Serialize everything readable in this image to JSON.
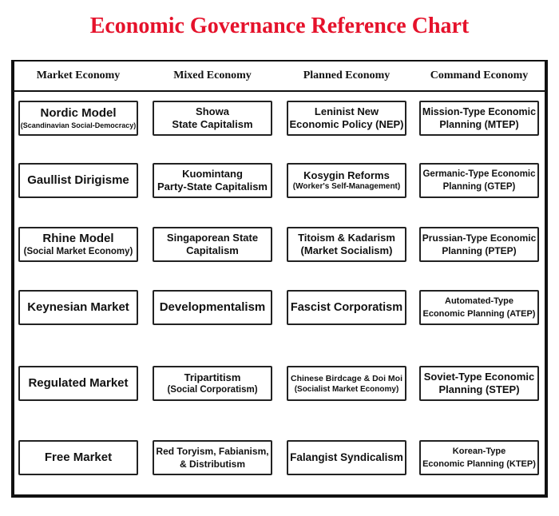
{
  "title": "Economic Governance Reference Chart",
  "columns": [
    {
      "header": "Market Economy",
      "items": [
        {
          "main": "Nordic Model",
          "sub": "(Scandinavian Social-Democracy)"
        },
        {
          "main": "Gaullist Dirigisme",
          "sub": ""
        },
        {
          "main": "Rhine Model",
          "sub": "(Social Market Economy)"
        },
        {
          "main": "Keynesian Market",
          "sub": ""
        },
        {
          "main": "Regulated Market",
          "sub": ""
        },
        {
          "main": "Free Market",
          "sub": ""
        }
      ]
    },
    {
      "header": "Mixed Economy",
      "items": [
        {
          "main": "Showa\nState Capitalism",
          "sub": ""
        },
        {
          "main": "Kuomintang\nParty-State Capitalism",
          "sub": ""
        },
        {
          "main": "Singaporean State\nCapitalism",
          "sub": ""
        },
        {
          "main": "Developmentalism",
          "sub": ""
        },
        {
          "main": "Tripartitism",
          "sub": "(Social Corporatism)"
        },
        {
          "main": "Red Toryism, Fabianism,\n& Distributism",
          "sub": ""
        }
      ]
    },
    {
      "header": "Planned Economy",
      "items": [
        {
          "main": "Leninist New\nEconomic Policy (NEP)",
          "sub": ""
        },
        {
          "main": "Kosygin Reforms",
          "sub": "(Worker's Self-Management)"
        },
        {
          "main": "Titoism & Kadarism\n(Market Socialism)",
          "sub": ""
        },
        {
          "main": "Fascist Corporatism",
          "sub": ""
        },
        {
          "main": "Chinese Birdcage & Doi Moi",
          "sub": "(Socialist Market Economy)"
        },
        {
          "main": "Falangist Syndicalism",
          "sub": ""
        }
      ]
    },
    {
      "header": "Command Economy",
      "items": [
        {
          "main": "Mission-Type Economic\nPlanning (MTEP)",
          "sub": ""
        },
        {
          "main": "Germanic-Type Economic\nPlanning (GTEP)",
          "sub": ""
        },
        {
          "main": "Prussian-Type Economic\nPlanning (PTEP)",
          "sub": ""
        },
        {
          "main": "Automated-Type\nEconomic Planning (ATEP)",
          "sub": ""
        },
        {
          "main": "Soviet-Type Economic\nPlanning (STEP)",
          "sub": ""
        },
        {
          "main": "Korean-Type\nEconomic Planning (KTEP)",
          "sub": ""
        }
      ]
    }
  ],
  "colors": {
    "title": "#e5122b",
    "border": "#111111"
  }
}
